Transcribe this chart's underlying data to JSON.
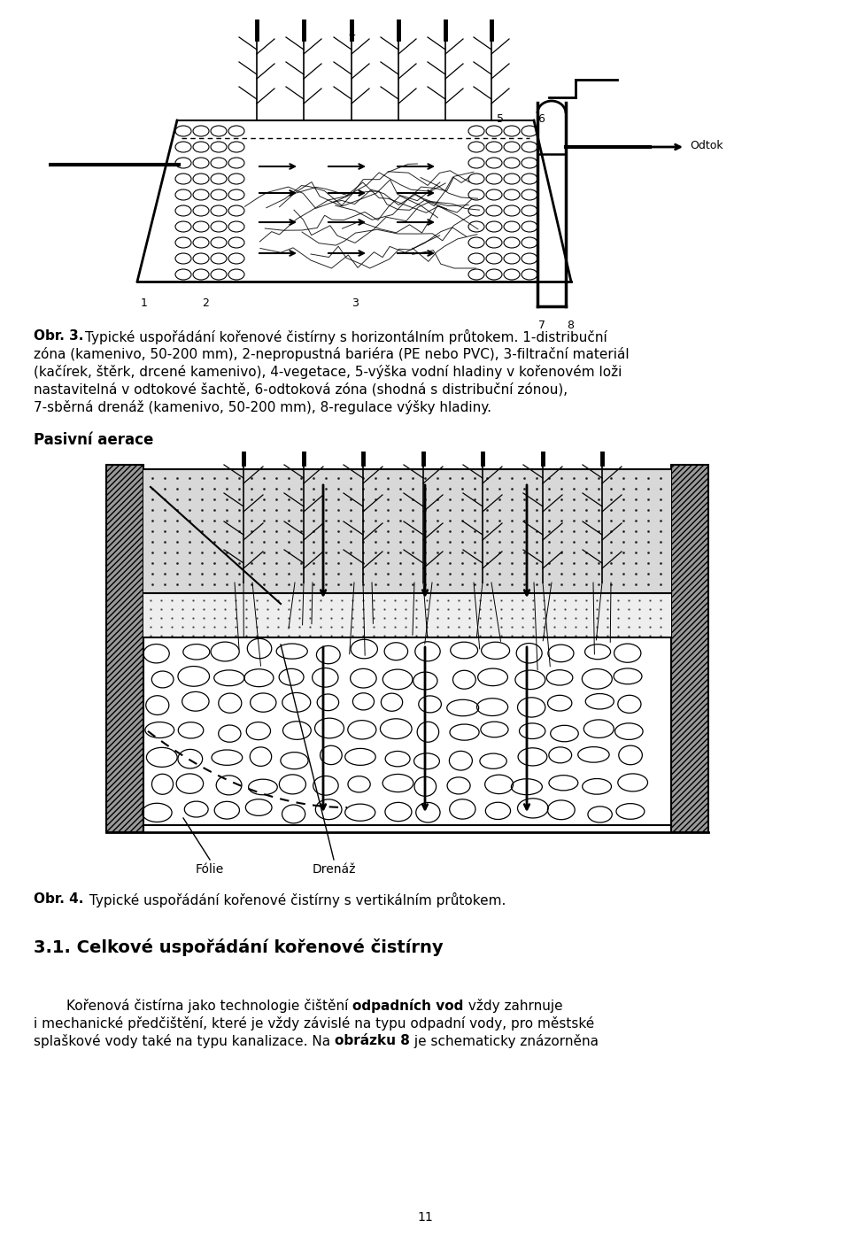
{
  "bg_color": "#ffffff",
  "page_width": 9.6,
  "page_height": 14.04,
  "dpi": 100,
  "fig1_caption_bold": "Obr. 3.",
  "fig1_caption_regular": " Typické uspořádání kořenové čistírny s horizontálním průtokem. 1-distribuční zóna (kamenivo, 50-200 mm), 2-nepropustná bariéra (PE nebo PVC), 3-filtrační materiál (kačírek, štěrk, drcené kamenivo), 4-vegetace, 5-výška vodní hladiny v kořenovém loži nastavitelná v odtokové šachtě, 6-odtoková zóna (shodná s distribuční zónou), 7-sběrná drenáž (kamenivo, 50-200 mm), 8-regulace výšky hladiny.",
  "fig2_label_bold": "Pasivní aerace",
  "fig2_caption_bold": "Obr. 4.",
  "fig2_caption_regular": " Typické uspořádání kořenové čistírny s vertikálním průtokem.",
  "section_title": "3.1. Celkové uspořádání kořenové čistírny",
  "page_number": "11",
  "font_size_caption": 11,
  "font_size_section": 14,
  "font_size_para": 11,
  "font_size_fig2_label": 12
}
